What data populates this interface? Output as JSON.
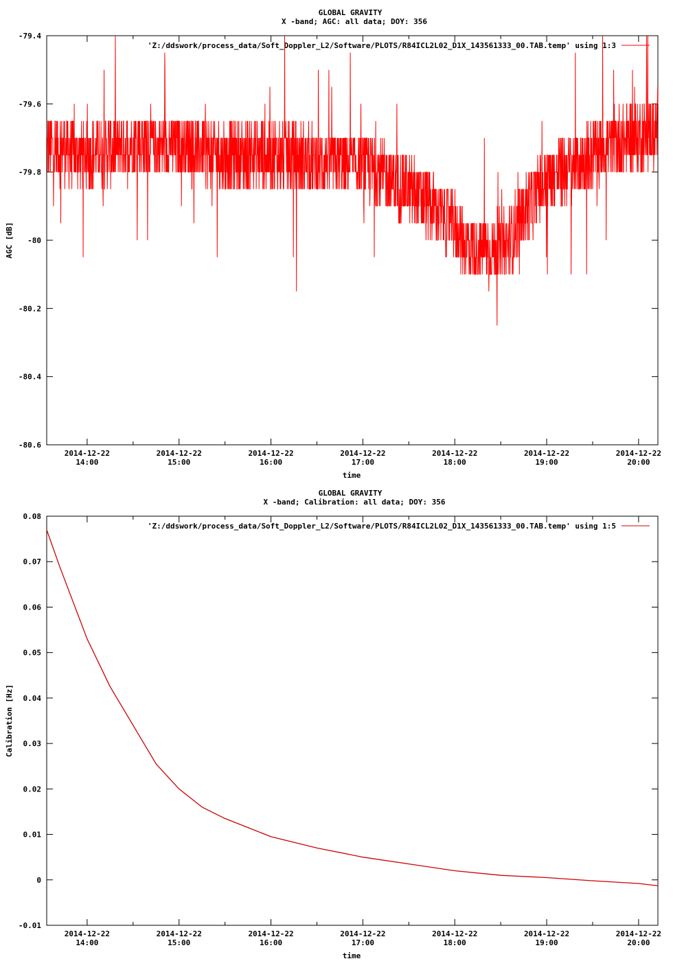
{
  "chart_data": [
    {
      "type": "line",
      "title": "GLOBAL GRAVITY",
      "subtitle": "X -band; AGC: all data; DOY: 356",
      "xlabel": "time",
      "ylabel": "AGC [dB]",
      "ylim": [
        -80.6,
        -79.4
      ],
      "y_ticks": [
        "-79.4",
        "-79.6",
        "-79.8",
        "-80",
        "-80.2",
        "-80.4",
        "-80.6"
      ],
      "y_tick_values": [
        -79.4,
        -79.6,
        -79.8,
        -80.0,
        -80.2,
        -80.4,
        -80.6
      ],
      "x_tick_dates": [
        "2014-12-22",
        "2014-12-22",
        "2014-12-22",
        "2014-12-22",
        "2014-12-22",
        "2014-12-22",
        "2014-12-22"
      ],
      "x_tick_times": [
        "14:00",
        "15:00",
        "16:00",
        "17:00",
        "18:00",
        "19:00",
        "20:00"
      ],
      "x_tick_hours": [
        14,
        15,
        16,
        17,
        18,
        19,
        20
      ],
      "xlim_hours": [
        13.56,
        20.21
      ],
      "color": "#ff0000",
      "grid": false,
      "legend_position": "top-right",
      "series": [
        {
          "name": "'Z:/ddswork/process_data/Soft_Doppler_L2/Software/PLOTS/R84ICL2L02_D1X_143561333_00.TAB.temp' using 1:3",
          "x_hours": [
            13.56,
            14.0,
            14.5,
            15.0,
            15.5,
            16.0,
            16.5,
            17.0,
            17.3,
            17.6,
            17.9,
            18.1,
            18.3,
            18.55,
            18.75,
            19.0,
            19.3,
            19.6,
            19.9,
            20.21
          ],
          "center_db": [
            -79.72,
            -79.75,
            -79.72,
            -79.72,
            -79.75,
            -79.75,
            -79.77,
            -79.78,
            -79.82,
            -79.87,
            -79.93,
            -80.0,
            -80.03,
            -80.02,
            -79.92,
            -79.82,
            -79.78,
            -79.73,
            -79.7,
            -79.68
          ],
          "spread_db": [
            0.1,
            0.1,
            0.1,
            0.1,
            0.1,
            0.1,
            0.1,
            0.1,
            0.1,
            0.1,
            0.1,
            0.1,
            0.1,
            0.1,
            0.1,
            0.1,
            0.1,
            0.1,
            0.1,
            0.1
          ]
        }
      ]
    },
    {
      "type": "line",
      "title": "GLOBAL GRAVITY",
      "subtitle": "X -band; Calibration: all data; DOY: 356",
      "xlabel": "time",
      "ylabel": "Calibration [Hz]",
      "ylim": [
        -0.01,
        0.08
      ],
      "y_ticks": [
        "0.08",
        "0.07",
        "0.06",
        "0.05",
        "0.04",
        "0.03",
        "0.02",
        "0.01",
        "0",
        "-0.01"
      ],
      "y_tick_values": [
        0.08,
        0.07,
        0.06,
        0.05,
        0.04,
        0.03,
        0.02,
        0.01,
        0.0,
        -0.01
      ],
      "x_tick_dates": [
        "2014-12-22",
        "2014-12-22",
        "2014-12-22",
        "2014-12-22",
        "2014-12-22",
        "2014-12-22",
        "2014-12-22"
      ],
      "x_tick_times": [
        "14:00",
        "15:00",
        "16:00",
        "17:00",
        "18:00",
        "19:00",
        "20:00"
      ],
      "x_tick_hours": [
        14,
        15,
        16,
        17,
        18,
        19,
        20
      ],
      "xlim_hours": [
        13.56,
        20.21
      ],
      "color": "#cc0000",
      "grid": false,
      "legend_position": "top-right",
      "series": [
        {
          "name": "'Z:/ddswork/process_data/Soft_Doppler_L2/Software/PLOTS/R84ICL2L02_D1X_143561333_00.TAB.temp' using 1:5",
          "x_hours": [
            13.56,
            13.7,
            13.85,
            14.0,
            14.25,
            14.5,
            14.75,
            15.0,
            15.25,
            15.5,
            15.75,
            16.0,
            16.5,
            17.0,
            17.5,
            18.0,
            18.5,
            19.0,
            19.5,
            20.0,
            20.21
          ],
          "y": [
            0.077,
            0.069,
            0.061,
            0.053,
            0.0425,
            0.034,
            0.0255,
            0.02,
            0.016,
            0.0135,
            0.0115,
            0.0095,
            0.007,
            0.005,
            0.0035,
            0.002,
            0.001,
            0.0005,
            -0.0002,
            -0.0008,
            -0.0013
          ]
        }
      ]
    }
  ]
}
